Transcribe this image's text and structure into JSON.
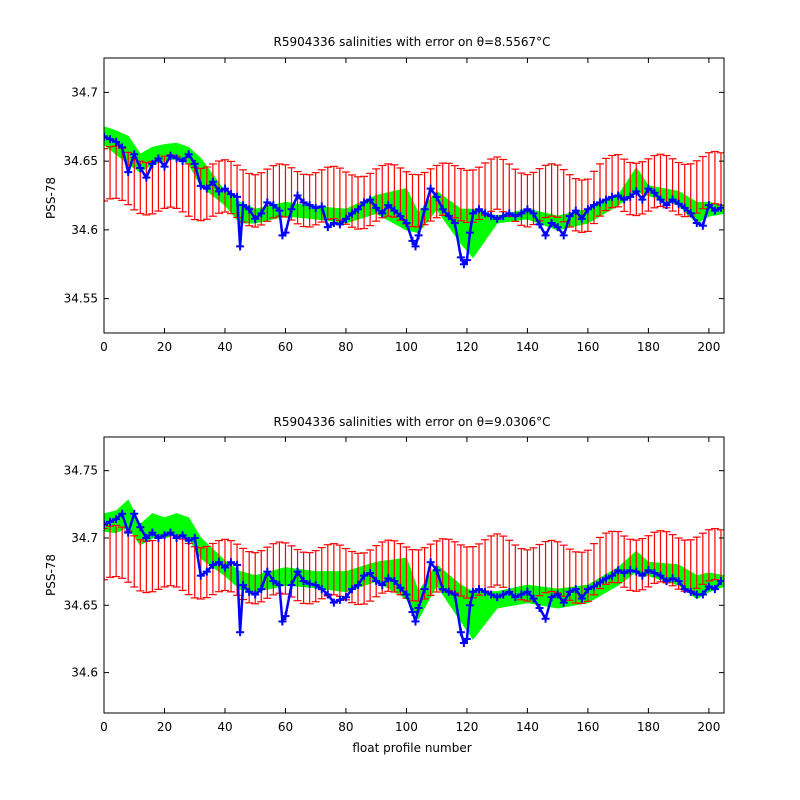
{
  "figure": {
    "xlabel": "float profile number",
    "colors": {
      "error_bars": "#ff0000",
      "mapped_salinity": "#00ff00",
      "float_salinity": "#0000ff",
      "connector": "#008080",
      "axes": "#000000",
      "background": "#ffffff"
    },
    "markers": {
      "float_salinity": "plus-marker"
    }
  },
  "chart_data": [
    {
      "type": "line",
      "title": "R5904336 salinities with error on θ=8.5567°C",
      "xlabel": "",
      "ylabel": "PSS-78",
      "xlim": [
        0,
        205
      ],
      "ylim": [
        34.525,
        34.725
      ],
      "xticks": [
        0,
        20,
        40,
        60,
        80,
        100,
        120,
        140,
        160,
        180,
        200
      ],
      "yticks": [
        34.55,
        34.6,
        34.65,
        34.7
      ],
      "ytick_labels": [
        "34.55",
        "34.6",
        "34.65",
        "34.7"
      ],
      "grid": false,
      "legend": "none",
      "series": [
        {
          "role": "mapped_salinity_band_upper",
          "x": [
            0,
            4,
            8,
            12,
            16,
            20,
            24,
            28,
            32,
            40,
            45,
            50,
            60,
            70,
            80,
            90,
            100,
            104,
            110,
            118,
            122,
            130,
            140,
            150,
            160,
            170,
            176,
            180,
            190,
            196,
            200,
            205
          ],
          "values": [
            34.675,
            34.672,
            34.668,
            34.655,
            34.66,
            34.662,
            34.663,
            34.66,
            34.652,
            34.628,
            34.62,
            34.615,
            34.62,
            34.617,
            34.615,
            34.625,
            34.63,
            34.612,
            34.628,
            34.615,
            34.615,
            34.61,
            34.615,
            34.61,
            34.615,
            34.625,
            34.645,
            34.632,
            34.628,
            34.62,
            34.62,
            34.618
          ]
        },
        {
          "role": "mapped_salinity_band_lower",
          "x": [
            0,
            4,
            8,
            12,
            16,
            20,
            24,
            28,
            32,
            40,
            45,
            50,
            60,
            70,
            80,
            90,
            100,
            104,
            110,
            118,
            122,
            130,
            140,
            150,
            160,
            170,
            176,
            180,
            190,
            196,
            200,
            205
          ],
          "values": [
            34.662,
            34.655,
            34.648,
            34.642,
            34.648,
            34.65,
            34.652,
            34.648,
            34.632,
            34.618,
            34.605,
            34.605,
            34.61,
            34.608,
            34.605,
            34.612,
            34.6,
            34.598,
            34.615,
            34.59,
            34.58,
            34.605,
            34.608,
            34.6,
            34.605,
            34.618,
            34.628,
            34.625,
            34.618,
            34.605,
            34.61,
            34.612
          ]
        },
        {
          "role": "error_bar_mean",
          "x": [
            0,
            10,
            20,
            30,
            40,
            50,
            60,
            70,
            80,
            90,
            100,
            110,
            120,
            130,
            140,
            150,
            160,
            170,
            180,
            190,
            200,
            205
          ],
          "values": [
            34.64,
            34.635,
            34.632,
            34.63,
            34.628,
            34.625,
            34.625,
            34.625,
            34.622,
            34.625,
            34.625,
            34.625,
            34.628,
            34.63,
            34.625,
            34.625,
            34.62,
            34.635,
            34.632,
            34.632,
            34.634,
            34.634
          ],
          "error": 0.019
        },
        {
          "role": "float_salinity",
          "x": [
            0,
            2,
            4,
            6,
            8,
            10,
            12,
            14,
            16,
            18,
            20,
            22,
            24,
            26,
            28,
            30,
            32,
            34,
            36,
            38,
            40,
            42,
            44,
            45,
            46,
            48,
            50,
            52,
            54,
            56,
            58,
            59,
            60,
            62,
            64,
            66,
            68,
            70,
            72,
            74,
            76,
            78,
            80,
            82,
            84,
            86,
            88,
            90,
            92,
            94,
            96,
            98,
            100,
            102,
            103,
            104,
            106,
            108,
            110,
            112,
            114,
            116,
            118,
            119,
            120,
            121,
            122,
            124,
            126,
            128,
            130,
            132,
            134,
            136,
            138,
            140,
            142,
            144,
            146,
            148,
            150,
            152,
            154,
            156,
            158,
            160,
            162,
            164,
            166,
            168,
            170,
            172,
            174,
            176,
            178,
            180,
            182,
            184,
            186,
            188,
            190,
            192,
            194,
            196,
            198,
            200,
            202,
            204
          ],
          "values": [
            34.668,
            34.666,
            34.664,
            34.66,
            34.642,
            34.655,
            34.645,
            34.638,
            34.648,
            34.652,
            34.646,
            34.654,
            34.652,
            34.65,
            34.655,
            34.648,
            34.632,
            34.63,
            34.635,
            34.628,
            34.63,
            34.626,
            34.624,
            34.588,
            34.618,
            34.615,
            34.608,
            34.612,
            34.62,
            34.618,
            34.614,
            34.596,
            34.598,
            34.615,
            34.625,
            34.62,
            34.618,
            34.616,
            34.617,
            34.602,
            34.605,
            34.604,
            34.608,
            34.612,
            34.615,
            34.62,
            34.622,
            34.616,
            34.612,
            34.618,
            34.614,
            34.61,
            34.605,
            34.592,
            34.588,
            34.596,
            34.615,
            34.63,
            34.624,
            34.615,
            34.61,
            34.605,
            34.58,
            34.575,
            34.578,
            34.598,
            34.612,
            34.615,
            34.612,
            34.61,
            34.608,
            34.61,
            34.612,
            34.61,
            34.612,
            34.615,
            34.612,
            34.604,
            34.596,
            34.605,
            34.602,
            34.596,
            34.61,
            34.614,
            34.608,
            34.615,
            34.618,
            34.62,
            34.622,
            34.624,
            34.625,
            34.622,
            34.624,
            34.628,
            34.622,
            34.63,
            34.627,
            34.622,
            34.618,
            34.622,
            34.619,
            34.616,
            34.612,
            34.605,
            34.603,
            34.618,
            34.614,
            34.616
          ]
        }
      ]
    },
    {
      "type": "line",
      "title": "R5904336 salinities with error on θ=9.0306°C",
      "xlabel": "float profile number",
      "ylabel": "PSS-78",
      "xlim": [
        0,
        205
      ],
      "ylim": [
        34.57,
        34.775
      ],
      "xticks": [
        0,
        20,
        40,
        60,
        80,
        100,
        120,
        140,
        160,
        180,
        200
      ],
      "yticks": [
        34.6,
        34.65,
        34.7,
        34.75
      ],
      "ytick_labels": [
        "34.6",
        "34.65",
        "34.7",
        "34.75"
      ],
      "grid": false,
      "legend": "none",
      "series": [
        {
          "role": "mapped_salinity_band_upper",
          "x": [
            0,
            4,
            8,
            12,
            16,
            20,
            24,
            28,
            32,
            40,
            45,
            50,
            60,
            70,
            80,
            90,
            100,
            104,
            110,
            118,
            122,
            130,
            140,
            150,
            160,
            170,
            176,
            180,
            190,
            196,
            200,
            205
          ],
          "values": [
            34.718,
            34.72,
            34.728,
            34.71,
            34.718,
            34.715,
            34.718,
            34.715,
            34.7,
            34.683,
            34.675,
            34.672,
            34.678,
            34.675,
            34.675,
            34.682,
            34.685,
            34.66,
            34.68,
            34.665,
            34.66,
            34.66,
            34.665,
            34.662,
            34.665,
            34.678,
            34.69,
            34.682,
            34.68,
            34.672,
            34.674,
            34.672
          ]
        },
        {
          "role": "mapped_salinity_band_lower",
          "x": [
            0,
            4,
            8,
            12,
            16,
            20,
            24,
            28,
            32,
            40,
            45,
            50,
            60,
            70,
            80,
            90,
            100,
            104,
            110,
            118,
            122,
            130,
            140,
            150,
            160,
            170,
            176,
            180,
            190,
            196,
            200,
            205
          ],
          "values": [
            34.705,
            34.704,
            34.708,
            34.695,
            34.7,
            34.7,
            34.703,
            34.7,
            34.685,
            34.672,
            34.662,
            34.66,
            34.665,
            34.663,
            34.66,
            34.668,
            34.655,
            34.64,
            34.665,
            34.638,
            34.625,
            34.648,
            34.652,
            34.648,
            34.652,
            34.665,
            34.675,
            34.672,
            34.665,
            34.655,
            34.66,
            34.664
          ]
        },
        {
          "role": "error_bar_mean",
          "x": [
            0,
            10,
            20,
            30,
            40,
            50,
            60,
            70,
            80,
            90,
            100,
            110,
            120,
            130,
            140,
            150,
            160,
            170,
            180,
            190,
            200,
            205
          ],
          "values": [
            34.688,
            34.684,
            34.68,
            34.678,
            34.676,
            34.674,
            34.674,
            34.674,
            34.672,
            34.675,
            34.676,
            34.676,
            34.678,
            34.68,
            34.676,
            34.675,
            34.674,
            34.685,
            34.682,
            34.683,
            34.684,
            34.684
          ],
          "error": 0.019
        },
        {
          "role": "float_salinity",
          "x": [
            0,
            2,
            4,
            6,
            8,
            10,
            12,
            14,
            16,
            18,
            20,
            22,
            24,
            26,
            28,
            30,
            32,
            34,
            36,
            38,
            40,
            42,
            44,
            45,
            46,
            48,
            50,
            52,
            54,
            56,
            58,
            59,
            60,
            62,
            64,
            66,
            68,
            70,
            72,
            74,
            76,
            78,
            80,
            82,
            84,
            86,
            88,
            90,
            92,
            94,
            96,
            98,
            100,
            102,
            103,
            104,
            106,
            108,
            110,
            112,
            114,
            116,
            118,
            119,
            120,
            121,
            122,
            124,
            126,
            128,
            130,
            132,
            134,
            136,
            138,
            140,
            142,
            144,
            146,
            148,
            150,
            152,
            154,
            156,
            158,
            160,
            162,
            164,
            166,
            168,
            170,
            172,
            174,
            176,
            178,
            180,
            182,
            184,
            186,
            188,
            190,
            192,
            194,
            196,
            198,
            200,
            202,
            204
          ],
          "values": [
            34.71,
            34.712,
            34.714,
            34.718,
            34.704,
            34.718,
            34.708,
            34.7,
            34.704,
            34.7,
            34.702,
            34.704,
            34.7,
            34.702,
            34.698,
            34.7,
            34.672,
            34.675,
            34.68,
            34.682,
            34.678,
            34.682,
            34.68,
            34.63,
            34.665,
            34.66,
            34.658,
            34.662,
            34.675,
            34.668,
            34.665,
            34.638,
            34.642,
            34.665,
            34.675,
            34.668,
            34.666,
            34.665,
            34.662,
            34.658,
            34.652,
            34.654,
            34.656,
            34.662,
            34.665,
            34.672,
            34.674,
            34.668,
            34.665,
            34.67,
            34.668,
            34.663,
            34.658,
            34.645,
            34.638,
            34.648,
            34.662,
            34.682,
            34.676,
            34.662,
            34.66,
            34.658,
            34.63,
            34.622,
            34.625,
            34.65,
            34.66,
            34.662,
            34.66,
            34.658,
            34.656,
            34.658,
            34.66,
            34.656,
            34.658,
            34.66,
            34.655,
            34.648,
            34.64,
            34.656,
            34.658,
            34.652,
            34.66,
            34.662,
            34.655,
            34.662,
            34.664,
            34.667,
            34.67,
            34.672,
            34.676,
            34.674,
            34.676,
            34.675,
            34.672,
            34.676,
            34.674,
            34.672,
            34.668,
            34.67,
            34.668,
            34.662,
            34.66,
            34.658,
            34.658,
            34.664,
            34.662,
            34.668
          ]
        }
      ]
    }
  ]
}
